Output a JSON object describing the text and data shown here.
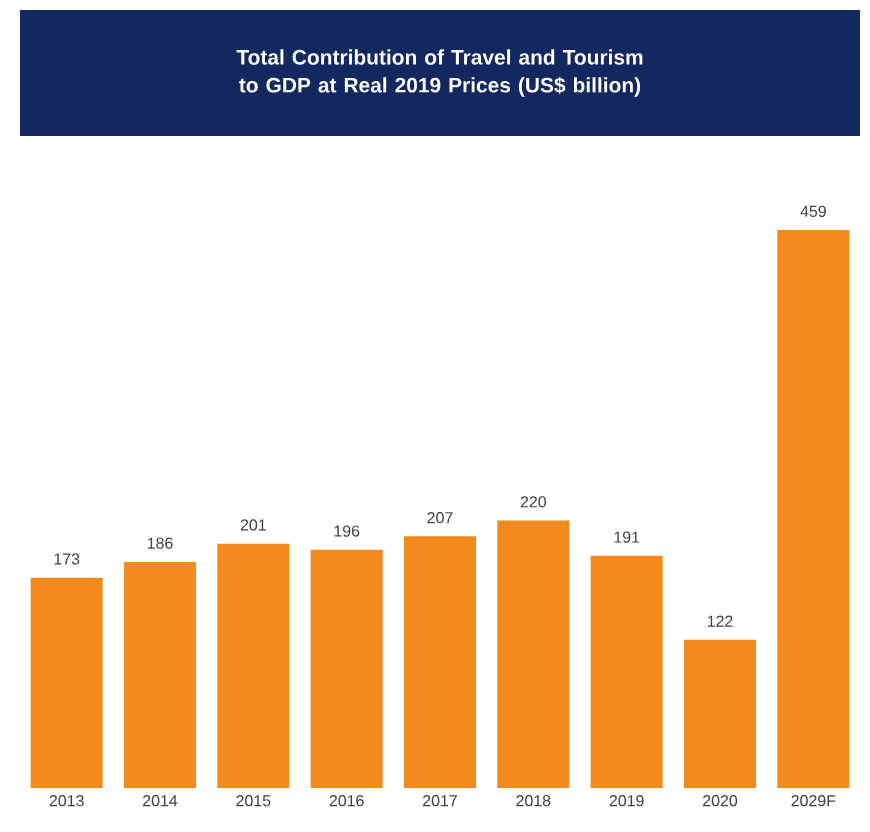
{
  "chart_data": {
    "type": "bar",
    "title": "Total Contribution of Travel and Tourism to GDP at Real 2019 Prices (US$ billion)",
    "categories": [
      "2013",
      "2014",
      "2015",
      "2016",
      "2017",
      "2018",
      "2019",
      "2020",
      "2029F"
    ],
    "values": [
      173,
      186,
      201,
      196,
      207,
      220,
      191,
      122,
      459
    ],
    "color": "#f28a1e",
    "data_labels": true
  }
}
